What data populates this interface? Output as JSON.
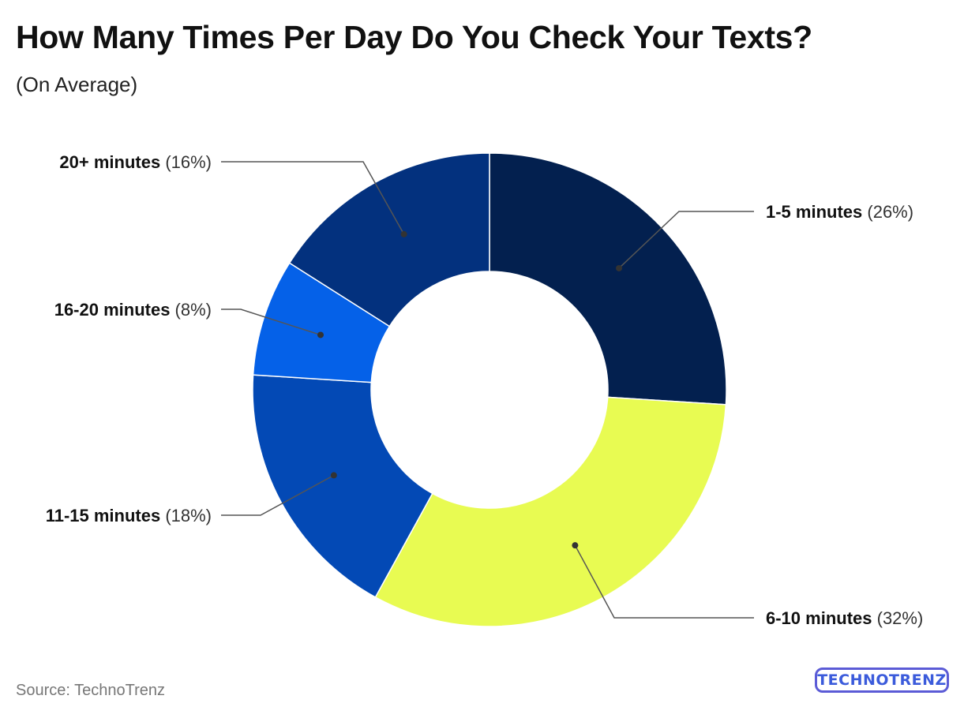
{
  "header": {
    "title": "How Many Times Per Day Do You Check Your Texts?",
    "subtitle": "(On Average)"
  },
  "chart_data": {
    "type": "pie",
    "donut": true,
    "slices": [
      {
        "name": "1-5 minutes",
        "value": 26,
        "value_label": "(26%)",
        "color": "#03204f"
      },
      {
        "name": "6-10 minutes",
        "value": 32,
        "value_label": "(32%)",
        "color": "#e8fb52"
      },
      {
        "name": "11-15 minutes",
        "value": 18,
        "value_label": "(18%)",
        "color": "#0349b5"
      },
      {
        "name": "16-20 minutes",
        "value": 8,
        "value_label": "(8%)",
        "color": "#0561e8"
      },
      {
        "name": "20+ minutes",
        "value": 16,
        "value_label": "(16%)",
        "color": "#03317e"
      }
    ]
  },
  "footer": {
    "source": "Source: TechnoTrenz",
    "brand": "TECHNOTRENZ"
  }
}
